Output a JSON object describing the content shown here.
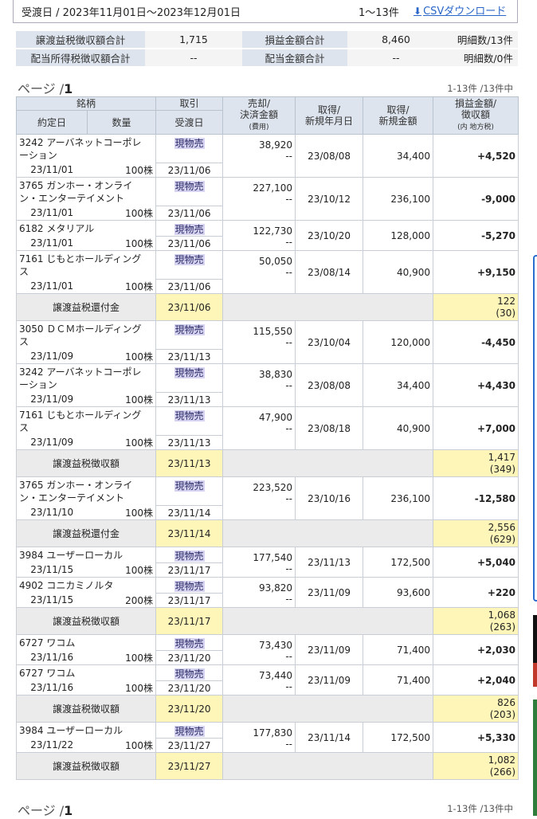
{
  "header": {
    "period": "受渡日 / 2023年11月01日〜2023年12月01日",
    "count": "1〜13件",
    "csv_label": "CSVダウンロード",
    "download_icon": "download-icon"
  },
  "summary": {
    "row1": {
      "label1": "譲渡益税徴収額合計",
      "value1": "1,715",
      "label2": "損益金額合計",
      "value2": "8,460",
      "count": "明細数/13件"
    },
    "row2": {
      "label1": "配当所得税徴収額合計",
      "value1": "--",
      "label2": "配当金額合計",
      "value2": "--",
      "count": "明細数/0件"
    }
  },
  "pager": {
    "prefix": "ページ /",
    "page": "1",
    "range": "1-13件 /13件中"
  },
  "columns": {
    "meigara": "銘柄",
    "torihiki": "取引",
    "uri1": "売却/",
    "uri2": "決済金額",
    "uri3": "(費用)",
    "shu1": "取得/",
    "shu2": "新規年月日",
    "kin1": "取得/",
    "kin2": "新規金額",
    "son1": "損益金額/",
    "son2": "徴収額",
    "son3": "(内 地方税)",
    "yakujo": "約定日",
    "suryo": "数量",
    "ukewatashi": "受渡日"
  },
  "rows": [
    {
      "type": "trade",
      "name1": "3242 アーバネットコーポレ",
      "name2": "ーション",
      "date": "23/11/01",
      "qty": "100株",
      "trade": "現物売",
      "settle": "23/11/06",
      "sale": "38,920",
      "fee": "--",
      "acq_date": "23/08/08",
      "acq_amt": "34,400",
      "pl": "+4,520",
      "sign": "pos"
    },
    {
      "type": "trade",
      "name1": "3765 ガンホー・オンライ",
      "name2": "ン・エンターテイメント",
      "date": "23/11/01",
      "qty": "100株",
      "trade": "現物売",
      "settle": "23/11/06",
      "sale": "227,100",
      "fee": "--",
      "acq_date": "23/10/12",
      "acq_amt": "236,100",
      "pl": "-9,000",
      "sign": "neg"
    },
    {
      "type": "trade",
      "name1": "6182 メタリアル",
      "name2": "",
      "date": "23/11/01",
      "qty": "100株",
      "trade": "現物売",
      "settle": "23/11/06",
      "sale": "122,730",
      "fee": "--",
      "acq_date": "23/10/20",
      "acq_amt": "128,000",
      "pl": "-5,270",
      "sign": "neg"
    },
    {
      "type": "trade",
      "name1": "7161 じもとホールディング",
      "name2": "ス",
      "date": "23/11/01",
      "qty": "100株",
      "trade": "現物売",
      "settle": "23/11/06",
      "sale": "50,050",
      "fee": "--",
      "acq_date": "23/08/14",
      "acq_amt": "40,900",
      "pl": "+9,150",
      "sign": "pos"
    },
    {
      "type": "tax",
      "label": "譲渡益税還付金",
      "date": "23/11/06",
      "amt": "122",
      "local": "(30)"
    },
    {
      "type": "trade",
      "name1": "3050 ＤＣＭホールディング",
      "name2": "ス",
      "date": "23/11/09",
      "qty": "100株",
      "trade": "現物売",
      "settle": "23/11/13",
      "sale": "115,550",
      "fee": "--",
      "acq_date": "23/10/04",
      "acq_amt": "120,000",
      "pl": "-4,450",
      "sign": "neg"
    },
    {
      "type": "trade",
      "name1": "3242 アーバネットコーポレ",
      "name2": "ーション",
      "date": "23/11/09",
      "qty": "100株",
      "trade": "現物売",
      "settle": "23/11/13",
      "sale": "38,830",
      "fee": "--",
      "acq_date": "23/08/08",
      "acq_amt": "34,400",
      "pl": "+4,430",
      "sign": "pos"
    },
    {
      "type": "trade",
      "name1": "7161 じもとホールディング",
      "name2": "ス",
      "date": "23/11/09",
      "qty": "100株",
      "trade": "現物売",
      "settle": "23/11/13",
      "sale": "47,900",
      "fee": "--",
      "acq_date": "23/08/18",
      "acq_amt": "40,900",
      "pl": "+7,000",
      "sign": "pos"
    },
    {
      "type": "tax",
      "label": "譲渡益税徴収額",
      "date": "23/11/13",
      "amt": "1,417",
      "local": "(349)"
    },
    {
      "type": "trade",
      "name1": "3765 ガンホー・オンライ",
      "name2": "ン・エンターテイメント",
      "date": "23/11/10",
      "qty": "100株",
      "trade": "現物売",
      "settle": "23/11/14",
      "sale": "223,520",
      "fee": "--",
      "acq_date": "23/10/16",
      "acq_amt": "236,100",
      "pl": "-12,580",
      "sign": "neg"
    },
    {
      "type": "tax",
      "label": "譲渡益税還付金",
      "date": "23/11/14",
      "amt": "2,556",
      "local": "(629)"
    },
    {
      "type": "trade",
      "name1": "3984 ユーザーローカル",
      "name2": "",
      "date": "23/11/15",
      "qty": "100株",
      "trade": "現物売",
      "settle": "23/11/17",
      "sale": "177,540",
      "fee": "--",
      "acq_date": "23/11/13",
      "acq_amt": "172,500",
      "pl": "+5,040",
      "sign": "pos"
    },
    {
      "type": "trade",
      "name1": "4902 コニカミノルタ",
      "name2": "",
      "date": "23/11/15",
      "qty": "200株",
      "trade": "現物売",
      "settle": "23/11/17",
      "sale": "93,820",
      "fee": "--",
      "acq_date": "23/11/09",
      "acq_amt": "93,600",
      "pl": "+220",
      "sign": "pos"
    },
    {
      "type": "tax",
      "label": "譲渡益税徴収額",
      "date": "23/11/17",
      "amt": "1,068",
      "local": "(263)"
    },
    {
      "type": "trade",
      "name1": "6727 ワコム",
      "name2": "",
      "date": "23/11/16",
      "qty": "100株",
      "trade": "現物売",
      "settle": "23/11/20",
      "sale": "73,430",
      "fee": "--",
      "acq_date": "23/11/09",
      "acq_amt": "71,400",
      "pl": "+2,030",
      "sign": "pos"
    },
    {
      "type": "trade",
      "name1": "6727 ワコム",
      "name2": "",
      "date": "23/11/16",
      "qty": "100株",
      "trade": "現物売",
      "settle": "23/11/20",
      "sale": "73,440",
      "fee": "--",
      "acq_date": "23/11/09",
      "acq_amt": "71,400",
      "pl": "+2,040",
      "sign": "pos"
    },
    {
      "type": "tax",
      "label": "譲渡益税徴収額",
      "date": "23/11/20",
      "amt": "826",
      "local": "(203)"
    },
    {
      "type": "trade",
      "name1": "3984 ユーザーローカル",
      "name2": "",
      "date": "23/11/22",
      "qty": "100株",
      "trade": "現物売",
      "settle": "23/11/27",
      "sale": "177,830",
      "fee": "--",
      "acq_date": "23/11/14",
      "acq_amt": "172,500",
      "pl": "+5,330",
      "sign": "pos"
    },
    {
      "type": "tax",
      "label": "譲渡益税徴収額",
      "date": "23/11/27",
      "amt": "1,082",
      "local": "(266)"
    }
  ],
  "colors": {
    "header_bg": "#dde4ee",
    "positive": "#e8232b",
    "negative": "#1a2fd0",
    "highlight": "#fdf6b8",
    "link": "#2b67c8"
  }
}
